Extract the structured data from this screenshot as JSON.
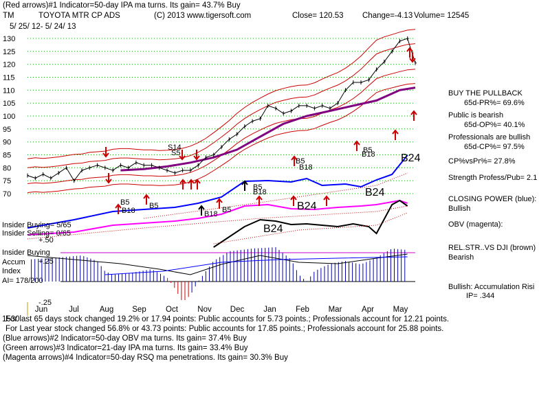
{
  "header": {
    "line1": "(Red arrows)#1 Indicator=50-day IPA ma turns. Its gain= 43.7% Buy",
    "ticker": "TM",
    "name": "TOYOTA MTR CP ADS",
    "copyright": "(C) 2013 www.tigersoft.com",
    "close": "Close=  120.53",
    "change": "Change=-4.13",
    "volume": "Volume= 12545",
    "daterange": "5/ 25/ 12-  5/ 24/ 13"
  },
  "right_panel": {
    "buy_title": "BUY THE PULLBACK",
    "pr": "65d-PR%= 69.6%",
    "public_line": "Public is bearish",
    "op": "65d-OP%= 40.1%",
    "pros_line": "Professionals are bullish",
    "cp": "65d-CP%= 97.5%",
    "cpvspr": "CP%vsPr%=  27.8%",
    "strength": "Strength Profess/Pub= 2.1",
    "closing_power": "CLOSING POWER (blue):",
    "bullish": "Bullish",
    "obv": "OBV (magenta):",
    "relstr": "REL.STR..VS DJI (brown)",
    "bearish": "Bearish",
    "accum_risk": "Bullish: Accumulation Risi",
    "ip": "IP=  .344"
  },
  "left_panel": {
    "insider_buying": "Insider Buying= 5/65",
    "insider_selling": "Insider Selling= 0/65",
    "plus50": "+.50",
    "insider_buying2": "Insider Buying",
    "accum": "Accum",
    "plus25": "+.25",
    "index": "Index",
    "ai": "AI= 178/200",
    "minus25": "-.25"
  },
  "footer": {
    "overlap": "1530",
    "line1": "For last 65 days stock changed  19.2% or  17.94 points:  Public accounts for  5.73 points.;  Professionals account for  12.21 points.",
    "line2": "For Last year stock changed  56.8% or  43.73 points:  Public accounts for  17.85 points.;  Professionals account for  25.88 points.",
    "line3": "(Blue arrows)#2 Indicator=50-day OBV ma turns. Its gain= 37.4% Buy",
    "line4": "(Green arrows)#3 Indicator=21-day IPA ma turns. Its gain= 33.4% Buy",
    "line5": "(Magenta arrows)#4 Indicator=50-day RSQ ma penetrations. Its gain= 30.3% Buy"
  },
  "signals": [
    {
      "label": "S14",
      "size": "small"
    },
    {
      "label": "S5",
      "size": "small"
    },
    {
      "label": "B5",
      "size": "small"
    },
    {
      "label": "B18",
      "size": "small"
    },
    {
      "label": "B5",
      "size": "small"
    },
    {
      "label": "B18",
      "size": "small"
    },
    {
      "label": "B5",
      "size": "small"
    },
    {
      "label": "B5",
      "size": "small"
    },
    {
      "label": "B18",
      "size": "small"
    },
    {
      "label": "B5",
      "size": "small"
    },
    {
      "label": "B18",
      "size": "small"
    },
    {
      "label": "B5",
      "size": "small"
    },
    {
      "label": "B18",
      "size": "small"
    },
    {
      "label": "B24",
      "size": "big"
    },
    {
      "label": "B24",
      "size": "big"
    },
    {
      "label": "B24",
      "size": "big"
    },
    {
      "label": "B24",
      "size": "big"
    }
  ],
  "chart_data": {
    "type": "line",
    "title": "TOYOTA MTR CP ADS",
    "months": [
      "Jun",
      "Jul",
      "Aug",
      "Sep",
      "Oct",
      "Nov",
      "Dec",
      "Jan",
      "Feb",
      "Mar",
      "Apr",
      "May"
    ],
    "y_ticks": [
      130,
      125,
      120,
      115,
      110,
      105,
      100,
      95,
      90,
      85,
      80,
      75,
      70
    ],
    "ylim": [
      68,
      132
    ],
    "colors": {
      "price": "#000000",
      "ma": "#800080",
      "band": "#cc0000",
      "closing_power": "#0000ff",
      "obv": "#ff00ff",
      "accum": "#0000aa",
      "grid": "#00aa00"
    },
    "series": [
      {
        "name": "Close",
        "values": [
          [
            0,
            77
          ],
          [
            2,
            76
          ],
          [
            4,
            77.5
          ],
          [
            6,
            76
          ],
          [
            8,
            78
          ],
          [
            10,
            80
          ],
          [
            12,
            75
          ],
          [
            14,
            79
          ],
          [
            16,
            80
          ],
          [
            18,
            81
          ],
          [
            20,
            80
          ],
          [
            22,
            79
          ],
          [
            24,
            81
          ],
          [
            26,
            80
          ],
          [
            28,
            82
          ],
          [
            30,
            81
          ],
          [
            32,
            81
          ],
          [
            34,
            80
          ],
          [
            36,
            79
          ],
          [
            38,
            78
          ],
          [
            40,
            79
          ],
          [
            42,
            79
          ],
          [
            44,
            81
          ],
          [
            46,
            84
          ],
          [
            48,
            85
          ],
          [
            50,
            88
          ],
          [
            52,
            91
          ],
          [
            54,
            93
          ],
          [
            56,
            96
          ],
          [
            58,
            98
          ],
          [
            60,
            99
          ],
          [
            62,
            104
          ],
          [
            64,
            103
          ],
          [
            66,
            101
          ],
          [
            68,
            102
          ],
          [
            70,
            104
          ],
          [
            72,
            104
          ],
          [
            74,
            103
          ],
          [
            76,
            104
          ],
          [
            78,
            103
          ],
          [
            80,
            105
          ],
          [
            82,
            110
          ],
          [
            84,
            113
          ],
          [
            86,
            113
          ],
          [
            88,
            114
          ],
          [
            90,
            118
          ],
          [
            92,
            121
          ],
          [
            94,
            125
          ],
          [
            96,
            129
          ],
          [
            98,
            130
          ],
          [
            100,
            120.5
          ]
        ]
      },
      {
        "name": "50-day MA",
        "values": [
          [
            24,
            79
          ],
          [
            30,
            79.5
          ],
          [
            36,
            80.5
          ],
          [
            42,
            82
          ],
          [
            48,
            84
          ],
          [
            54,
            87
          ],
          [
            60,
            92
          ],
          [
            66,
            97
          ],
          [
            72,
            100
          ],
          [
            78,
            102
          ],
          [
            84,
            104
          ],
          [
            90,
            106
          ],
          [
            96,
            110
          ],
          [
            100,
            111
          ]
        ]
      }
    ]
  }
}
